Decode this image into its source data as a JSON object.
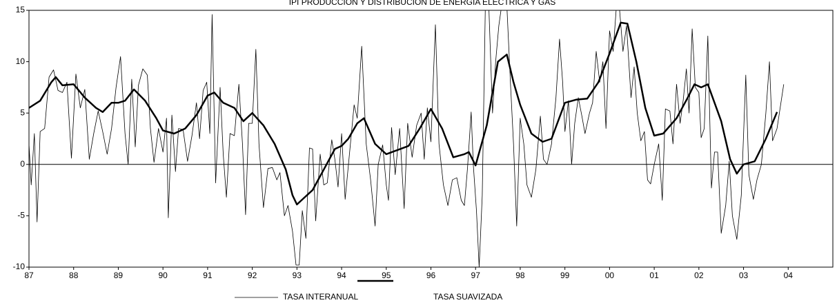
{
  "chart_data": {
    "type": "line",
    "title": "IPI PRODUCCIÓN Y DISTRIBUCIÓN DE ENERGÍA ELÉCTRICA Y GAS",
    "xlim": [
      1987,
      2005
    ],
    "xticks": [
      {
        "value": 1987,
        "label": "87"
      },
      {
        "value": 1988,
        "label": "88"
      },
      {
        "value": 1989,
        "label": "89"
      },
      {
        "value": 1990,
        "label": "90"
      },
      {
        "value": 1991,
        "label": "91"
      },
      {
        "value": 1992,
        "label": "92"
      },
      {
        "value": 1993,
        "label": "93"
      },
      {
        "value": 1994,
        "label": "94"
      },
      {
        "value": 1995,
        "label": "95"
      },
      {
        "value": 1996,
        "label": "96"
      },
      {
        "value": 1997,
        "label": "97"
      },
      {
        "value": 1998,
        "label": "98"
      },
      {
        "value": 1999,
        "label": "99"
      },
      {
        "value": 2000,
        "label": "00"
      },
      {
        "value": 2001,
        "label": "01"
      },
      {
        "value": 2002,
        "label": "02"
      },
      {
        "value": 2003,
        "label": "03"
      },
      {
        "value": 2004,
        "label": "04"
      }
    ],
    "ylim": [
      -10,
      15
    ],
    "yticks": [
      -10,
      -5,
      0,
      5,
      10,
      15
    ],
    "zero_line": true,
    "grid": false,
    "series": [
      {
        "name": "TASA INTERANUAL",
        "color": "#000000",
        "width": 0.8,
        "x": [
          1987.0,
          1987.05,
          1987.12,
          1987.18,
          1987.25,
          1987.35,
          1987.45,
          1987.55,
          1987.65,
          1987.75,
          1987.85,
          1987.95,
          1988.05,
          1988.15,
          1988.25,
          1988.35,
          1988.45,
          1988.55,
          1988.65,
          1988.75,
          1988.85,
          1988.95,
          1989.05,
          1989.15,
          1989.22,
          1989.3,
          1989.38,
          1989.45,
          1989.55,
          1989.65,
          1989.72,
          1989.8,
          1989.9,
          1990.0,
          1990.08,
          1990.12,
          1990.2,
          1990.28,
          1990.35,
          1990.45,
          1990.55,
          1990.65,
          1990.75,
          1990.82,
          1990.9,
          1990.98,
          1991.05,
          1991.1,
          1991.18,
          1991.28,
          1991.35,
          1991.42,
          1991.5,
          1991.6,
          1991.7,
          1991.78,
          1991.85,
          1991.92,
          1992.0,
          1992.08,
          1992.15,
          1992.25,
          1992.35,
          1992.45,
          1992.55,
          1992.62,
          1992.72,
          1992.8,
          1992.9,
          1992.98,
          1993.05,
          1993.12,
          1993.2,
          1993.28,
          1993.35,
          1993.42,
          1993.52,
          1993.6,
          1993.68,
          1993.78,
          1993.85,
          1993.92,
          1994.0,
          1994.08,
          1994.18,
          1994.28,
          1994.35,
          1994.45,
          1994.55,
          1994.65,
          1994.75,
          1994.82,
          1994.92,
          1995.0,
          1995.05,
          1995.12,
          1995.2,
          1995.3,
          1995.4,
          1995.48,
          1995.58,
          1995.68,
          1995.78,
          1995.85,
          1995.92,
          1996.0,
          1996.1,
          1996.18,
          1996.28,
          1996.38,
          1996.48,
          1996.58,
          1996.68,
          1996.75,
          1996.82,
          1996.9,
          1996.95,
          1997.02,
          1997.08,
          1997.15,
          1997.22,
          1997.3,
          1997.38,
          1997.45,
          1997.52,
          1997.6,
          1997.7,
          1997.78,
          1997.85,
          1997.92,
          1998.0,
          1998.08,
          1998.15,
          1998.25,
          1998.35,
          1998.45,
          1998.52,
          1998.6,
          1998.7,
          1998.8,
          1998.88,
          1998.95,
          1999.0,
          1999.08,
          1999.15,
          1999.22,
          1999.3,
          1999.38,
          1999.45,
          1999.55,
          1999.62,
          1999.7,
          1999.78,
          1999.85,
          1999.92,
          2000.0,
          2000.08,
          2000.15,
          2000.22,
          2000.3,
          2000.38,
          2000.48,
          2000.55,
          2000.62,
          2000.7,
          2000.78,
          2000.85,
          2000.92,
          2001.0,
          2001.1,
          2001.18,
          2001.25,
          2001.35,
          2001.42,
          2001.5,
          2001.58,
          2001.65,
          2001.72,
          2001.78,
          2001.85,
          2001.92,
          2002.0,
          2002.05,
          2002.12,
          2002.2,
          2002.28,
          2002.35,
          2002.42,
          2002.5,
          2002.6,
          2002.68,
          2002.75,
          2002.85,
          2002.95,
          2003.05,
          2003.12,
          2003.22,
          2003.3,
          2003.4,
          2003.5,
          2003.58,
          2003.65,
          2003.75,
          2003.9
        ],
        "values": [
          2,
          -2,
          3,
          -5.6,
          3.2,
          3.5,
          8.5,
          9.2,
          7.2,
          7,
          8,
          0.6,
          8.8,
          5.5,
          7.3,
          0.5,
          3,
          5.2,
          3.2,
          1,
          3.5,
          7.5,
          10.5,
          3,
          0,
          8.3,
          1.7,
          7.7,
          9.3,
          8.7,
          3.5,
          0.2,
          3.5,
          1.2,
          4.5,
          -5.2,
          4.8,
          -0.7,
          3.5,
          3.4,
          0.3,
          2.8,
          6,
          2.5,
          7.2,
          8,
          3,
          14.6,
          -1.8,
          7.5,
          1,
          -3.2,
          3,
          2.8,
          7.8,
          2,
          -4.9,
          4,
          4,
          11.2,
          2,
          -4.2,
          -0.4,
          -0.3,
          -1.5,
          -0.8,
          -5,
          -4,
          -6.5,
          -9.8,
          -9.8,
          -4.5,
          -7.2,
          1.6,
          1.5,
          -5.5,
          1,
          -2,
          -1.8,
          2.4,
          0.5,
          -2.2,
          3,
          -3.4,
          1.2,
          5.8,
          4.5,
          11.5,
          2,
          -1.5,
          -6,
          0,
          1.9,
          -2,
          -3.5,
          3.6,
          -1,
          3.5,
          -4.3,
          4,
          0.7,
          3.8,
          5,
          0.5,
          5.5,
          2.2,
          13.6,
          2,
          -2,
          -4,
          -1.5,
          -1.3,
          -3.5,
          -4,
          -0.3,
          5.1,
          -0.1,
          -4.5,
          -10,
          -3,
          16,
          15,
          5,
          10,
          13.5,
          16,
          15.5,
          8,
          2,
          -6,
          4.5,
          2,
          -2,
          -3.2,
          -0.5,
          4.7,
          0.5,
          0,
          2,
          6.5,
          12.2,
          8,
          3.2,
          6.2,
          0,
          4,
          6.5,
          4.7,
          3,
          5,
          6,
          11,
          8,
          10,
          3.5,
          13,
          11,
          15.2,
          15.3,
          11,
          13.5,
          6.5,
          9.5,
          5,
          2.3,
          3.2,
          -1.5,
          -1.9,
          0,
          2,
          -3.5,
          5.4,
          5.2,
          2,
          7.8,
          4,
          6.3,
          9.3,
          5,
          13.2,
          7.5,
          7,
          2.6,
          3.5,
          12.5,
          -2.3,
          1.2,
          1.2,
          -6.7,
          -4,
          0.3,
          -5,
          -7.3,
          -3,
          8.7,
          -1,
          -3.4,
          -1.5,
          0,
          5,
          10,
          2.3,
          3.5,
          7.8
        ]
      },
      {
        "name": "TASA SUAVIZADA",
        "color": "#000000",
        "width": 2.5,
        "x": [
          1987.0,
          1987.25,
          1987.5,
          1987.6,
          1987.75,
          1988.0,
          1988.25,
          1988.5,
          1988.65,
          1988.85,
          1989.0,
          1989.15,
          1989.35,
          1989.6,
          1989.85,
          1990.0,
          1990.25,
          1990.5,
          1990.75,
          1991.0,
          1991.15,
          1991.35,
          1991.6,
          1991.8,
          1992.0,
          1992.25,
          1992.5,
          1992.75,
          1992.9,
          1993.0,
          1993.15,
          1993.35,
          1993.6,
          1993.85,
          1994.0,
          1994.15,
          1994.35,
          1994.5,
          1994.75,
          1995.0,
          1995.25,
          1995.5,
          1995.75,
          1996.0,
          1996.25,
          1996.5,
          1996.75,
          1996.85,
          1997.0,
          1997.25,
          1997.5,
          1997.7,
          1997.85,
          1998.0,
          1998.25,
          1998.5,
          1998.7,
          1999.0,
          1999.25,
          1999.5,
          1999.75,
          2000.0,
          2000.25,
          2000.4,
          2000.6,
          2000.8,
          2001.0,
          2001.2,
          2001.5,
          2001.75,
          2001.9,
          2002.05,
          2002.2,
          2002.5,
          2002.7,
          2002.85,
          2003.0,
          2003.25,
          2003.5,
          2003.75
        ],
        "values": [
          5.5,
          6.2,
          8,
          8.5,
          7.7,
          7.8,
          6.5,
          5.5,
          5.1,
          6,
          6,
          6.2,
          7.3,
          6.2,
          4.5,
          3.3,
          3,
          3.5,
          4.8,
          6.7,
          7,
          6,
          5.5,
          4.2,
          5,
          3.8,
          2,
          -0.5,
          -3,
          -3.9,
          -3.3,
          -2.5,
          -0.5,
          1.5,
          1.8,
          2.5,
          4,
          4.5,
          2,
          1,
          1.4,
          1.8,
          3.5,
          5.4,
          3.5,
          0.7,
          1,
          1.2,
          -0.1,
          3.8,
          10,
          10.7,
          8,
          5.8,
          3,
          2.2,
          2.5,
          6,
          6.3,
          6.4,
          8,
          10.8,
          13.8,
          13.7,
          10,
          5.5,
          2.8,
          3,
          4.5,
          6.5,
          7.8,
          7.5,
          7.8,
          4.2,
          0.5,
          -0.9,
          0,
          0.3,
          2.5,
          5.1
        ]
      }
    ]
  }
}
